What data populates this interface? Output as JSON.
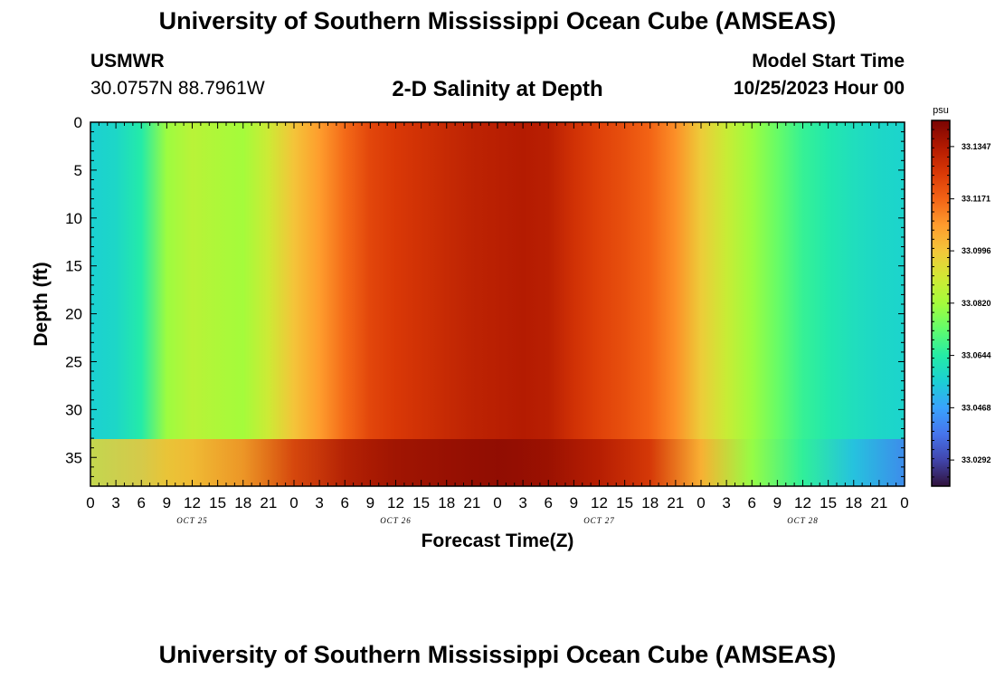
{
  "header": {
    "title": "University of Southern Mississippi Ocean Cube (AMSEAS)",
    "station": "USMWR",
    "location": "30.0757N  88.7961W",
    "subtitle": "2-D Salinity at Depth",
    "model_start_label": "Model Start Time",
    "model_start_value": "10/25/2023 Hour 00",
    "footer_title": "University of Southern Mississippi Ocean Cube (AMSEAS)"
  },
  "chart_data": {
    "type": "heatmap",
    "title": "2-D Salinity at Depth",
    "xlabel": "Forecast Time(Z)",
    "ylabel": "Depth (ft)",
    "x_range_hours": [
      0,
      96
    ],
    "x_tick_labels": [
      "0",
      "3",
      "6",
      "9",
      "12",
      "15",
      "18",
      "21",
      "0",
      "3",
      "6",
      "9",
      "12",
      "15",
      "18",
      "21",
      "0",
      "3",
      "6",
      "9",
      "12",
      "15",
      "18",
      "21",
      "0",
      "3",
      "6",
      "9",
      "12",
      "15",
      "18",
      "21",
      "0"
    ],
    "day_labels": [
      "OCT 25",
      "OCT 26",
      "OCT 27",
      "OCT 28"
    ],
    "y_ticks": [
      0,
      5,
      10,
      15,
      20,
      25,
      30,
      35
    ],
    "ylim": [
      0,
      38
    ],
    "colorbar": {
      "unit": "psu",
      "tick_labels": [
        "33.1347",
        "33.1171",
        "33.0996",
        "33.0820",
        "33.0644",
        "33.0468",
        "33.0292"
      ],
      "min": 33.0204,
      "max": 33.1435,
      "colors": [
        "#30123b",
        "#4145ab",
        "#4675ed",
        "#39a2fc",
        "#1bcfd4",
        "#24eca6",
        "#61fc6c",
        "#a4fc3b",
        "#d1e834",
        "#f3c63a",
        "#fe9b2d",
        "#f36315",
        "#d93806",
        "#b11901",
        "#7a0402"
      ]
    },
    "surface_profile": {
      "hours": [
        0,
        3,
        6,
        9,
        12,
        15,
        18,
        21,
        24,
        27,
        30,
        33,
        36,
        39,
        42,
        45,
        48,
        51,
        54,
        57,
        60,
        63,
        66,
        69,
        72,
        75,
        78,
        81,
        84,
        87,
        90,
        93,
        96
      ],
      "salinity": [
        33.056,
        33.058,
        33.064,
        33.081,
        33.086,
        33.084,
        33.082,
        33.09,
        33.1,
        33.108,
        33.116,
        33.123,
        33.126,
        33.128,
        33.13,
        33.132,
        33.133,
        33.134,
        33.133,
        33.128,
        33.124,
        33.121,
        33.117,
        33.11,
        33.098,
        33.089,
        33.081,
        33.074,
        33.067,
        33.063,
        33.06,
        33.058,
        33.057
      ]
    },
    "bottom_profile": {
      "hours": [
        0,
        6,
        12,
        18,
        24,
        30,
        36,
        42,
        48,
        54,
        60,
        66,
        72,
        78,
        84,
        90,
        96
      ],
      "salinity": [
        33.095,
        33.1,
        33.104,
        33.112,
        33.128,
        33.136,
        33.139,
        33.14,
        33.141,
        33.139,
        33.135,
        33.128,
        33.105,
        33.08,
        33.066,
        33.052,
        33.04
      ]
    }
  }
}
